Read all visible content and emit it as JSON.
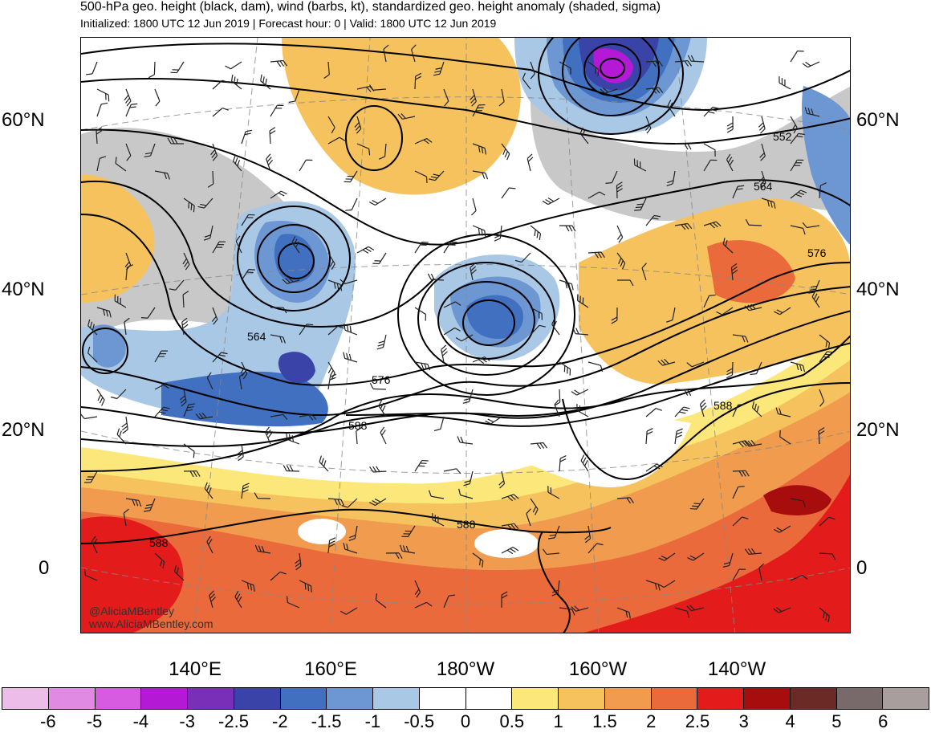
{
  "title": "500-hPa geo. height (black, dam), wind (barbs, kt), standardized geo. height anomaly (shaded, sigma)",
  "subtitle": "Initialized: 1800 UTC 12 Jun 2019 | Forecast hour: 0 | Valid: 1800 UTC 12 Jun 2019",
  "lat_labels": {
    "left": [
      "60°N",
      "40°N",
      "20°N",
      "0"
    ],
    "right": [
      "60°N",
      "40°N",
      "20°N",
      "0"
    ]
  },
  "lon_labels": [
    "140°E",
    "160°E",
    "180°W",
    "160°W",
    "140°W"
  ],
  "contour_labels": [
    "552",
    "564",
    "576",
    "564",
    "576",
    "588",
    "588",
    "588",
    "588"
  ],
  "credit": {
    "handle": "@AliciaMBentley",
    "website": "www.AliciaMBentley.com"
  },
  "colorbar": {
    "colors": [
      "#ebbde8",
      "#e08ae3",
      "#d65be0",
      "#b41ad6",
      "#7a2fb8",
      "#3a44a8",
      "#4170c1",
      "#6d97d3",
      "#a8c8e6",
      "#ffffff",
      "#ffffff",
      "#fce77a",
      "#f5c25e",
      "#f09b4d",
      "#ea6a3c",
      "#e31b1b",
      "#a80d0d",
      "#6b2a26",
      "#786a6a",
      "#a89e9e"
    ],
    "ticks": [
      "-6",
      "-5",
      "-4",
      "-3",
      "-2.5",
      "-2",
      "-1.5",
      "-1",
      "-0.5",
      "0",
      "0.5",
      "1",
      "1.5",
      "2",
      "2.5",
      "3",
      "4",
      "5",
      "6"
    ]
  },
  "shading_colors": {
    "land_gray": "#c8c8c8",
    "neg_0_5": "#a8c8e6",
    "neg_1": "#6d97d3",
    "neg_1_5": "#4170c1",
    "neg_2": "#3a44a8",
    "neg_3": "#b41ad6",
    "pos_0_5": "#fce77a",
    "pos_1": "#f5c25e",
    "pos_1_5": "#f09b4d",
    "pos_2": "#ea6a3c",
    "pos_2_5": "#e31b1b",
    "pos_3": "#a80d0d"
  }
}
